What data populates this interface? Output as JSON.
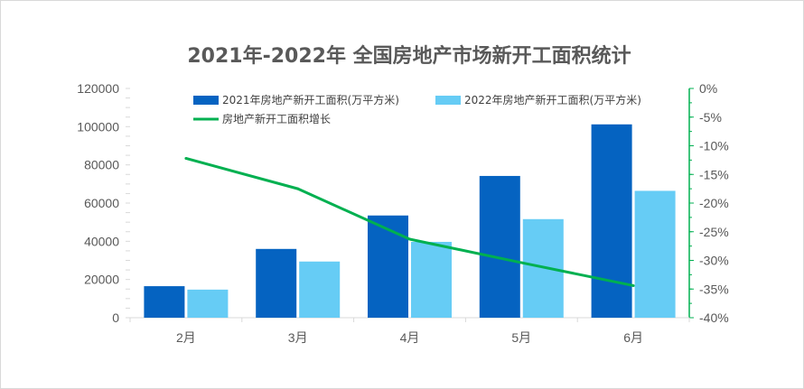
{
  "chart_data": {
    "type": "bar",
    "title": "2021年-2022年 全国房地产市场新开工面积统计",
    "categories": [
      "2月",
      "3月",
      "4月",
      "5月",
      "6月"
    ],
    "series": [
      {
        "name": "2021年房地产新开工面积(万平方米)",
        "type": "bar",
        "axis": "left",
        "color": "#0563C1",
        "values": [
          16500,
          36000,
          53500,
          74200,
          101200
        ]
      },
      {
        "name": "2022年房地产新开工面积(万平方米)",
        "type": "bar",
        "axis": "left",
        "color": "#66CCF5",
        "values": [
          14700,
          29400,
          39700,
          51600,
          66400
        ]
      },
      {
        "name": "房地产新开工面积增长",
        "type": "line",
        "axis": "right",
        "color": "#00B050",
        "values": [
          -12.2,
          -17.5,
          -26.3,
          -30.4,
          -34.4
        ]
      }
    ],
    "ylim_left": [
      0,
      120000
    ],
    "yticks_left": [
      "0",
      "20000",
      "40000",
      "60000",
      "80000",
      "100000",
      "120000"
    ],
    "ylim_right": [
      -40,
      0
    ],
    "yticks_right": [
      "0%",
      "-5%",
      "-10%",
      "-15%",
      "-20%",
      "-25%",
      "-30%",
      "-35%",
      "-40%"
    ],
    "right_axis_color": "#00B050",
    "grid": false,
    "legend_position": "top"
  }
}
